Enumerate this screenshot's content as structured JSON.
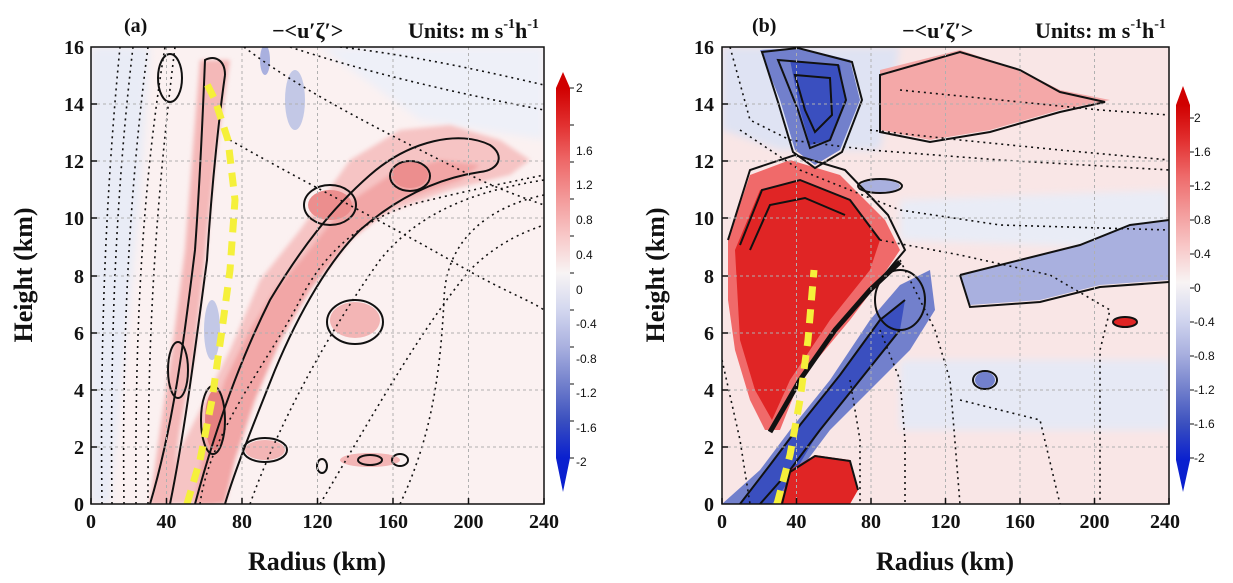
{
  "chart_data": [
    {
      "panel": "(a)",
      "type": "heatmap",
      "title": "−<u′ζ′>",
      "units_prefix": "Units: m s",
      "units_exp1": "-1",
      "units_mid": "h",
      "units_exp2": "-1",
      "xlabel": "Radius (km)",
      "ylabel": "Height  (km)",
      "xlim": [
        0,
        240
      ],
      "ylim": [
        0,
        16
      ],
      "xticks": [
        "0",
        "40",
        "80",
        "120",
        "160",
        "200",
        "240"
      ],
      "yticks": [
        "0",
        "2",
        "4",
        "6",
        "8",
        "10",
        "12",
        "14",
        "16"
      ],
      "grid": true,
      "colorbar_ticks": [
        "2",
        "1.6",
        "1.2",
        "0.8",
        "0.4",
        "0",
        "-0.4",
        "-0.8",
        "-1.2",
        "-1.6",
        "-2"
      ],
      "features": [
        {
          "kind": "positive band",
          "path": [
            [
              48,
              0
            ],
            [
              56,
              4
            ],
            [
              62,
              8
            ],
            [
              66,
              12
            ],
            [
              66,
              15.3
            ]
          ],
          "peak": 1.2
        },
        {
          "kind": "positive band",
          "path": [
            [
              55,
              0
            ],
            [
              70,
              3
            ],
            [
              90,
              7
            ],
            [
              115,
              10
            ],
            [
              160,
              12
            ],
            [
              215,
              12.5
            ]
          ],
          "peak": 1.2
        },
        {
          "kind": "negative patch",
          "center": [
            110,
            14.5
          ],
          "value": -0.8
        },
        {
          "kind": "yellow dashed line",
          "path": [
            [
              52,
              0
            ],
            [
              64,
              4
            ],
            [
              72,
              9
            ],
            [
              66,
              15
            ]
          ]
        }
      ]
    },
    {
      "panel": "(b)",
      "type": "heatmap",
      "title": "−<u′ζ′>",
      "units_prefix": "Units: m s",
      "units_exp1": "-1",
      "units_mid": "h",
      "units_exp2": "-1",
      "xlabel": "Radius (km)",
      "ylabel": "Height  (km)",
      "xlim": [
        0,
        240
      ],
      "ylim": [
        0,
        16
      ],
      "xticks": [
        "0",
        "40",
        "80",
        "120",
        "160",
        "200",
        "240"
      ],
      "yticks": [
        "0",
        "2",
        "4",
        "6",
        "8",
        "10",
        "12",
        "14",
        "16"
      ],
      "grid": true,
      "colorbar_ticks": [
        "2",
        "1.6",
        "1.2",
        "0.8",
        "0.4",
        "0",
        "-0.4",
        "-0.8",
        "-1.2",
        "-1.6",
        "-2"
      ],
      "features": [
        {
          "kind": "positive core",
          "center": [
            35,
            7
          ],
          "value": 2
        },
        {
          "kind": "negative band",
          "path": [
            [
              20,
              0
            ],
            [
              50,
              4
            ],
            [
              80,
              7
            ],
            [
              100,
              8
            ]
          ],
          "value": -1.6
        },
        {
          "kind": "negative patch",
          "center": [
            45,
            14.3
          ],
          "value": -1.6
        },
        {
          "kind": "positive patch",
          "center": [
            130,
            14
          ],
          "value": 0.8
        },
        {
          "kind": "negative band",
          "path": [
            [
              130,
              7.5
            ],
            [
              170,
              8
            ],
            [
              240,
              9
            ]
          ],
          "value": -0.8
        },
        {
          "kind": "yellow dashed line",
          "path": [
            [
              30,
              0
            ],
            [
              38,
              4
            ],
            [
              48,
              8.5
            ]
          ]
        }
      ]
    }
  ]
}
